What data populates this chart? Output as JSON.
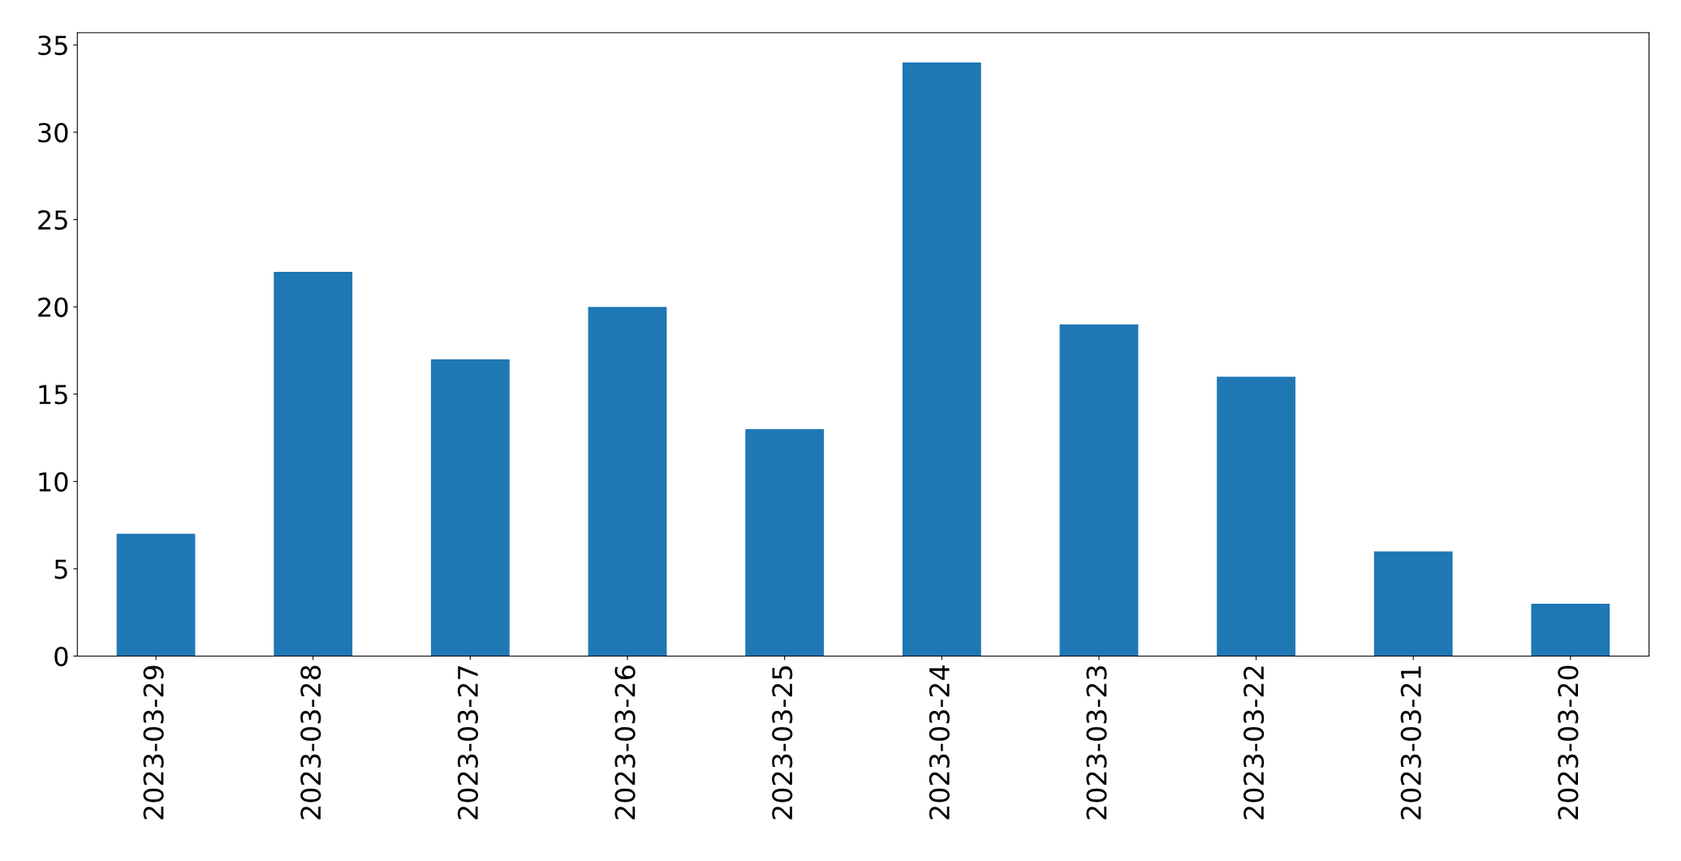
{
  "chart_data": {
    "type": "bar",
    "categories": [
      "2023-03-29",
      "2023-03-28",
      "2023-03-27",
      "2023-03-26",
      "2023-03-25",
      "2023-03-24",
      "2023-03-23",
      "2023-03-22",
      "2023-03-21",
      "2023-03-20"
    ],
    "values": [
      7,
      22,
      17,
      20,
      13,
      34,
      19,
      16,
      6,
      3
    ],
    "color": "#1f77b4",
    "ylim": [
      0,
      35.7
    ],
    "yticks": [
      0,
      5,
      10,
      15,
      20,
      25,
      30,
      35
    ],
    "grid": false
  }
}
